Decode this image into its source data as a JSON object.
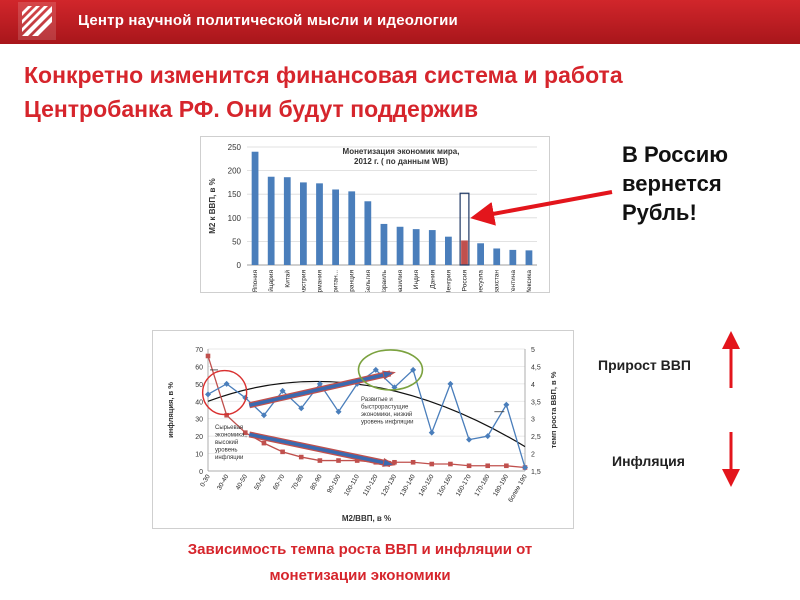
{
  "header": {
    "title": "Центр научной политической мысли и идеологии"
  },
  "headline": "Конкретно изменится финансовая система и работа Центробанка РФ. Они будут поддержив",
  "callout_ruble": [
    "В Россию",
    "вернется",
    "Рубль!"
  ],
  "gdp_growth_label": "Прирост ВВП",
  "inflation_label": "Инфляция",
  "caption": [
    "Зависимость темпа роста ВВП и инфляции от",
    "монетизации экономики"
  ],
  "colors": {
    "brand_red": "#d6252c",
    "bar_blue": "#4a7ebb",
    "highlight_red": "#c0504d",
    "arrow_red": "#e3151c"
  },
  "chart_data": [
    {
      "type": "bar",
      "title": "Монетизация экономик мира, 2012 г. ( по данным WB)",
      "ylabel": "М2 к ВВП, в %",
      "ylim": [
        0,
        250
      ],
      "yticks": [
        0,
        50,
        100,
        150,
        200,
        250
      ],
      "categories": [
        "Япония",
        "Швейцария",
        "Китай",
        "Австрия",
        "Германия",
        "Великобритан...",
        "Франция",
        "Бельгия",
        "Израиль",
        "Бразилия",
        "Индия",
        "Дания",
        "Венгрия",
        "Россия",
        "Венесуэла",
        "Казахстан",
        "Аргентина",
        "Мексика"
      ],
      "values": [
        240,
        187,
        186,
        175,
        173,
        160,
        156,
        135,
        87,
        81,
        76,
        74,
        60,
        52,
        46,
        35,
        32,
        31
      ],
      "highlight": {
        "category": "Россия",
        "target_value": 152
      },
      "grid": true
    },
    {
      "type": "line",
      "xlabel": "М2/ВВП, в %",
      "ylabel": "инфляция, в %",
      "ylabel_right": "темп роста ВВП, в %",
      "ylim": [
        0,
        70
      ],
      "yticks": [
        0,
        10,
        20,
        30,
        40,
        50,
        60,
        70
      ],
      "ylim_right": [
        1.5,
        5
      ],
      "yticks_right": [
        "1,5",
        "2",
        "2,5",
        "3",
        "3,5",
        "4",
        "4,5",
        "5"
      ],
      "categories": [
        "0-30",
        "30-40",
        "40-50",
        "50-60",
        "60-70",
        "70-80",
        "80-90",
        "90-100",
        "100-110",
        "110-120",
        "120-130",
        "130-140",
        "140-150",
        "150-160",
        "160-170",
        "170-180",
        "180-190",
        "более 190"
      ],
      "series": [
        {
          "axis": "left",
          "color": "#c0504d",
          "values": [
            66,
            32,
            22,
            16,
            11,
            8,
            6,
            6,
            6,
            5,
            5,
            5,
            4,
            4,
            3,
            3,
            3,
            2
          ]
        },
        {
          "axis": "right",
          "color": "#4a7ebb",
          "values": [
            3.7,
            4.0,
            3.6,
            3.1,
            3.8,
            3.3,
            4.0,
            3.2,
            4.0,
            4.4,
            3.9,
            4.4,
            2.6,
            4.0,
            2.4,
            2.5,
            3.4,
            1.6
          ]
        }
      ],
      "annotations": [
        "Сырьевая экономика, высокий уровень инфляции",
        "Развитые и быстрорастущие экономики, низкий уровень инфляции"
      ]
    }
  ]
}
